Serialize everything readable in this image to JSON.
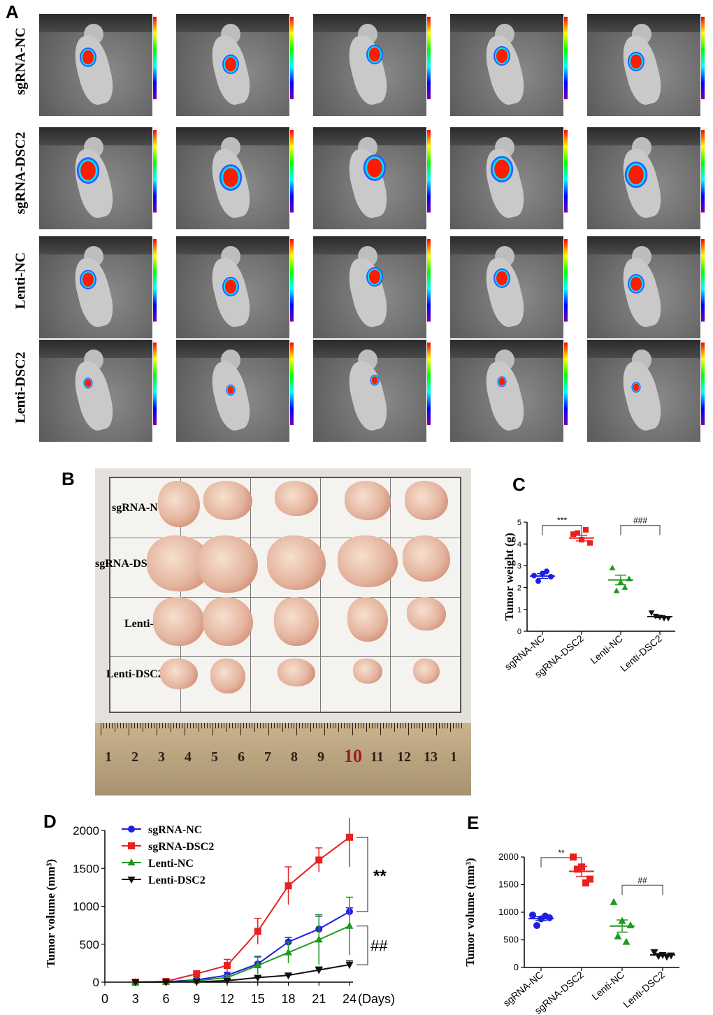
{
  "panels": {
    "a": "A",
    "b": "B",
    "c": "C",
    "d": "D",
    "e": "E"
  },
  "group_labels": [
    "sgRNA-NC",
    "sgRNA-DSC2",
    "Lenti-NC",
    "Lenti-DSC2"
  ],
  "ruler_numbers": [
    "1",
    "2",
    "3",
    "4",
    "5",
    "6",
    "7",
    "8",
    "9",
    "10",
    "11",
    "12",
    "13",
    "1"
  ],
  "colors": {
    "sgRNA-NC": "#1f1fe0",
    "sgRNA-DSC2": "#e82020",
    "Lenti-NC": "#1f9a1f",
    "Lenti-DSC2": "#111111"
  },
  "chart_data": [
    {
      "type": "scatter",
      "panel": "C",
      "categories": [
        "sgRNA-NC",
        "sgRNA-DSC2",
        "Lenti-NC",
        "Lenti-DSC2"
      ],
      "ylabel": "Tumor weight (g)",
      "ylim": [
        0,
        5
      ],
      "yticks": [
        "0",
        "1",
        "2",
        "3",
        "4",
        "5"
      ],
      "series": [
        {
          "name": "sgRNA-NC",
          "points": [
            2.55,
            2.65,
            2.5,
            2.3,
            2.75
          ],
          "mean": 2.53,
          "sem": 0.11
        },
        {
          "name": "sgRNA-DSC2",
          "points": [
            4.45,
            4.2,
            4.05,
            4.5,
            4.65
          ],
          "mean": 4.27,
          "sem": 0.13
        },
        {
          "name": "Lenti-NC",
          "points": [
            2.9,
            2.25,
            2.4,
            1.85,
            2.0
          ],
          "mean": 2.35,
          "sem": 0.22
        },
        {
          "name": "Lenti-DSC2",
          "points": [
            0.85,
            0.65,
            0.6,
            0.7,
            0.6
          ],
          "mean": 0.67,
          "sem": 0.04
        }
      ],
      "annotations": [
        "***",
        "###"
      ]
    },
    {
      "type": "line",
      "panel": "D",
      "x": [
        3,
        6,
        9,
        12,
        15,
        18,
        21,
        24
      ],
      "xticks": [
        "0",
        "3",
        "6",
        "9",
        "12",
        "15",
        "18",
        "21",
        "24"
      ],
      "xlabel": "(Days)",
      "ylabel": "Tumor volume (mm³)",
      "ylim": [
        0,
        2000
      ],
      "yticks": [
        "0",
        "500",
        "1000",
        "1500",
        "2000"
      ],
      "series": [
        {
          "name": "sgRNA-NC",
          "values": [
            0,
            5,
            30,
            90,
            240,
            530,
            700,
            930
          ],
          "err": [
            0,
            5,
            20,
            40,
            100,
            60,
            170,
            50
          ]
        },
        {
          "name": "sgRNA-DSC2",
          "values": [
            0,
            10,
            110,
            220,
            670,
            1270,
            1610,
            1910
          ],
          "err": [
            0,
            10,
            40,
            80,
            170,
            250,
            160,
            390
          ]
        },
        {
          "name": "Lenti-NC",
          "values": [
            0,
            3,
            20,
            60,
            220,
            390,
            560,
            740
          ],
          "err": [
            0,
            3,
            15,
            30,
            110,
            140,
            330,
            380
          ]
        },
        {
          "name": "Lenti-DSC2",
          "values": [
            0,
            2,
            5,
            20,
            60,
            90,
            160,
            230
          ],
          "err": [
            0,
            2,
            4,
            10,
            15,
            20,
            40,
            50
          ]
        }
      ],
      "legend": "top-left",
      "annotations": [
        "**",
        "##"
      ]
    },
    {
      "type": "scatter",
      "panel": "E",
      "categories": [
        "sgRNA-NC",
        "sgRNA-DSC2",
        "Lenti-NC",
        "Lenti-DSC2"
      ],
      "ylabel": "Tumor volume (mm³)",
      "ylim": [
        0,
        2000
      ],
      "yticks": [
        "0",
        "500",
        "1000",
        "1500",
        "2000"
      ],
      "series": [
        {
          "name": "sgRNA-NC",
          "points": [
            950,
            880,
            900,
            760,
            930
          ],
          "mean": 885,
          "sem": 35
        },
        {
          "name": "sgRNA-DSC2",
          "points": [
            2000,
            1820,
            1600,
            1780,
            1530
          ],
          "mean": 1740,
          "sem": 90
        },
        {
          "name": "Lenti-NC",
          "points": [
            1180,
            840,
            760,
            560,
            460
          ],
          "mean": 750,
          "sem": 110
        },
        {
          "name": "Lenti-DSC2",
          "points": [
            280,
            230,
            220,
            210,
            200
          ],
          "mean": 228,
          "sem": 15
        }
      ],
      "annotations": [
        "**",
        "##"
      ]
    }
  ]
}
